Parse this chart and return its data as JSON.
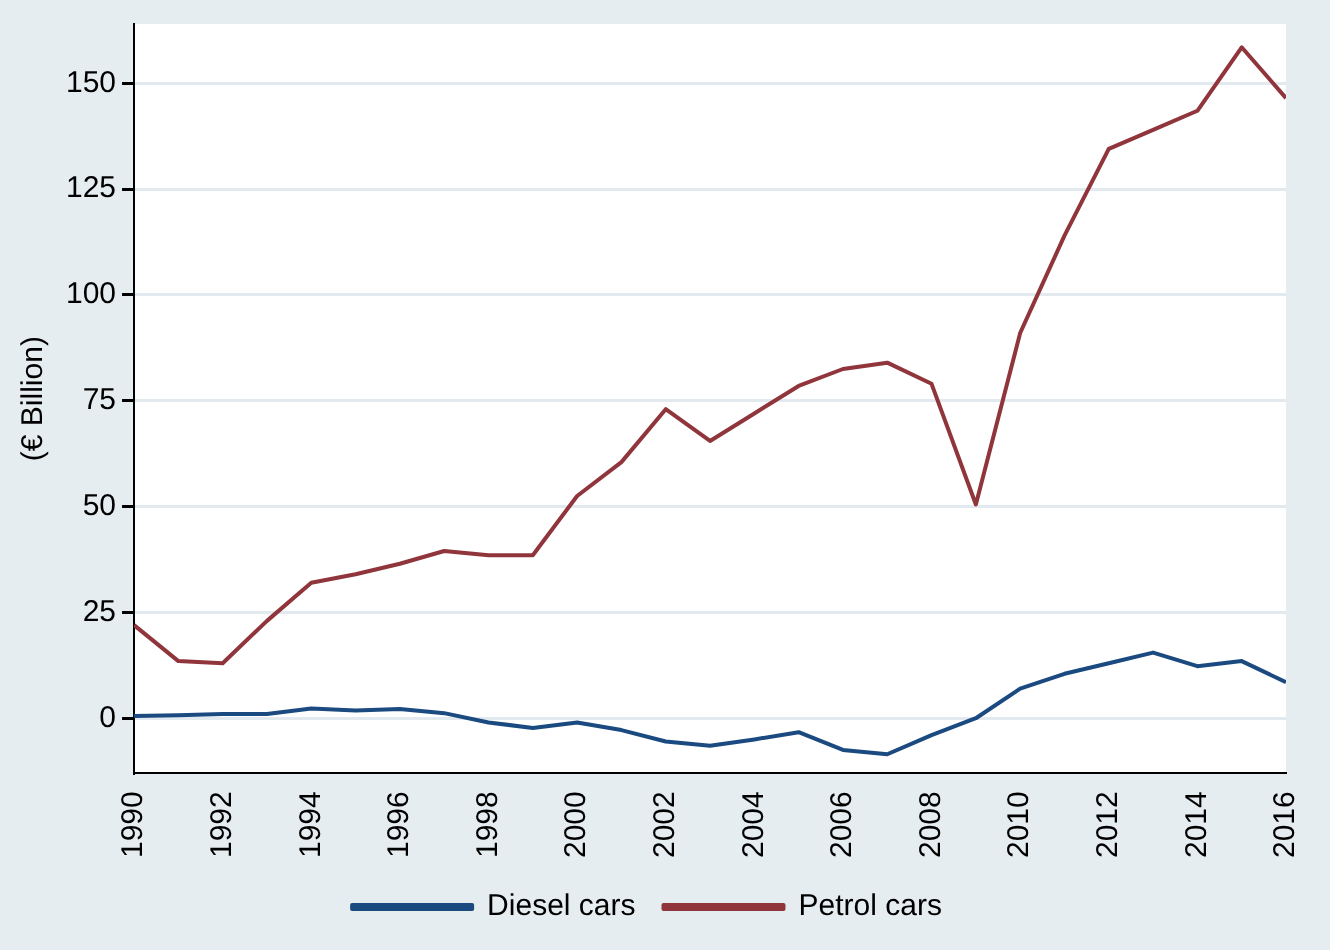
{
  "chart_data": {
    "type": "line",
    "ylabel": "(€ Billion)",
    "x": [
      1990,
      1991,
      1992,
      1993,
      1994,
      1995,
      1996,
      1997,
      1998,
      1999,
      2000,
      2001,
      2002,
      2003,
      2004,
      2005,
      2006,
      2007,
      2008,
      2009,
      2010,
      2011,
      2012,
      2013,
      2014,
      2015,
      2016
    ],
    "series": [
      {
        "name": "Diesel cars",
        "color": "#1a4a80",
        "values": [
          0.5,
          0.7,
          1,
          1,
          2.3,
          1.8,
          2.2,
          1.2,
          -1,
          -2.3,
          -1,
          -2.8,
          -5.5,
          -6.5,
          -5,
          -3.3,
          -7.5,
          -8.5,
          -4,
          0,
          7,
          10.5,
          13,
          15.5,
          12.3,
          13.5,
          8.5
        ]
      },
      {
        "name": "Petrol cars",
        "color": "#90353b",
        "values": [
          22,
          13.5,
          13,
          23,
          32,
          34,
          36.5,
          39.5,
          38.5,
          38.5,
          52.5,
          60.5,
          73,
          65.5,
          72,
          78.5,
          82.5,
          84,
          79,
          50.5,
          91,
          114,
          134.5,
          139,
          143.5,
          158.5,
          146.5
        ]
      }
    ],
    "xlim": [
      1990,
      2016
    ],
    "xticks": [
      1990,
      1992,
      1994,
      1996,
      1998,
      2000,
      2002,
      2004,
      2006,
      2008,
      2010,
      2012,
      2014,
      2016
    ],
    "ylim": [
      -13,
      164
    ],
    "yticks": [
      0,
      25,
      50,
      75,
      100,
      125,
      150
    ],
    "grid": "y",
    "legend": "bottom",
    "marker": "none",
    "line_style": "solid"
  }
}
